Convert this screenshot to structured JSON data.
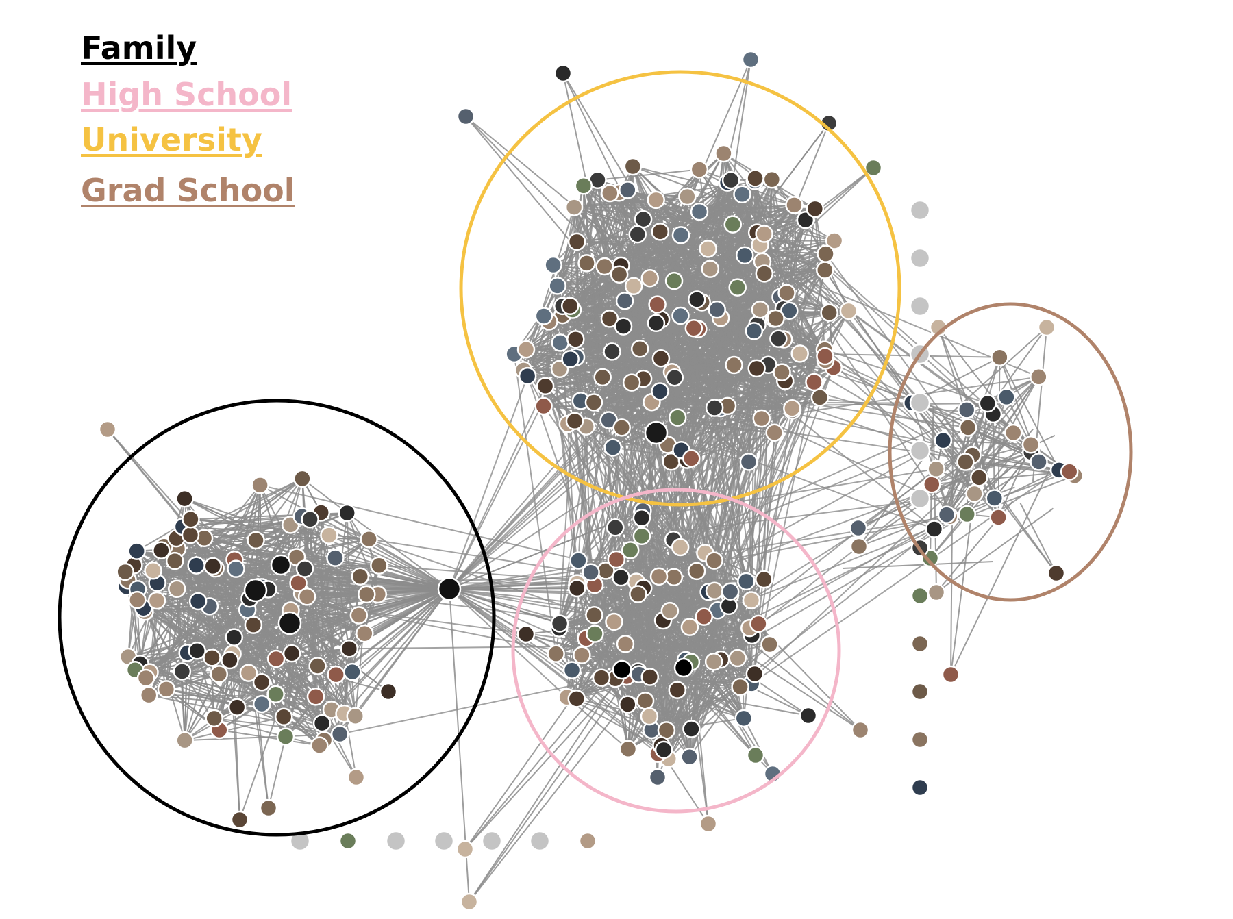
{
  "legend": {
    "items": [
      {
        "label": "Family",
        "color": "#000000"
      },
      {
        "label": "High School",
        "color": "#f4b6c9"
      },
      {
        "label": "University",
        "color": "#f5c242"
      },
      {
        "label": "Grad School",
        "color": "#b0836a"
      }
    ]
  },
  "colors": {
    "edge": "#8c8c8c",
    "isolated_node": "#c4c4c4",
    "node_border": "#ffffff"
  }
}
